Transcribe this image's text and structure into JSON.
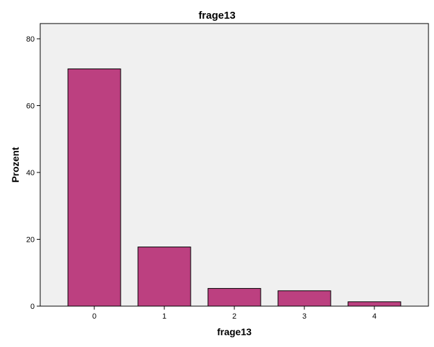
{
  "chart_data": {
    "type": "bar",
    "title": "frage13",
    "xlabel": "frage13",
    "ylabel": "Prozent",
    "categories": [
      "0",
      "1",
      "2",
      "3",
      "4"
    ],
    "values": [
      71,
      17.7,
      5.3,
      4.6,
      1.3
    ],
    "ylim": [
      0,
      80
    ],
    "yticks": [
      0,
      20,
      40,
      60,
      80
    ],
    "grid": false,
    "colors": {
      "bar_fill": "#bc4080",
      "bar_stroke": "#000000",
      "plot_background": "#f0f0f0",
      "axis": "#000000"
    }
  }
}
